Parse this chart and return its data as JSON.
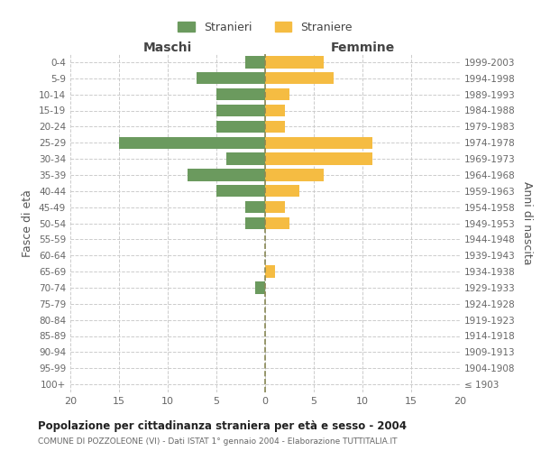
{
  "age_groups": [
    "0-4",
    "5-9",
    "10-14",
    "15-19",
    "20-24",
    "25-29",
    "30-34",
    "35-39",
    "40-44",
    "45-49",
    "50-54",
    "55-59",
    "60-64",
    "65-69",
    "70-74",
    "75-79",
    "80-84",
    "85-89",
    "90-94",
    "95-99",
    "100+"
  ],
  "birth_years": [
    "1999-2003",
    "1994-1998",
    "1989-1993",
    "1984-1988",
    "1979-1983",
    "1974-1978",
    "1969-1973",
    "1964-1968",
    "1959-1963",
    "1954-1958",
    "1949-1953",
    "1944-1948",
    "1939-1943",
    "1934-1938",
    "1929-1933",
    "1924-1928",
    "1919-1923",
    "1914-1918",
    "1909-1913",
    "1904-1908",
    "≤ 1903"
  ],
  "males": [
    2,
    7,
    5,
    5,
    5,
    15,
    4,
    8,
    5,
    2,
    2,
    0,
    0,
    0,
    1,
    0,
    0,
    0,
    0,
    0,
    0
  ],
  "females": [
    6,
    7,
    2.5,
    2,
    2,
    11,
    11,
    6,
    3.5,
    2,
    2.5,
    0,
    0,
    1,
    0,
    0,
    0,
    0,
    0,
    0,
    0
  ],
  "male_color": "#6b9a5e",
  "female_color": "#f5bc42",
  "male_label": "Stranieri",
  "female_label": "Straniere",
  "xlabel_left": "Maschi",
  "xlabel_right": "Femmine",
  "ylabel_left": "Fasce di età",
  "ylabel_right": "Anni di nascita",
  "xlim": 20,
  "title": "Popolazione per cittadinanza straniera per età e sesso - 2004",
  "subtitle": "COMUNE DI POZZOLEONE (VI) - Dati ISTAT 1° gennaio 2004 - Elaborazione TUTTITALIA.IT",
  "background_color": "#ffffff",
  "grid_color": "#cccccc",
  "axis_label_color": "#555555",
  "tick_label_color": "#666666"
}
